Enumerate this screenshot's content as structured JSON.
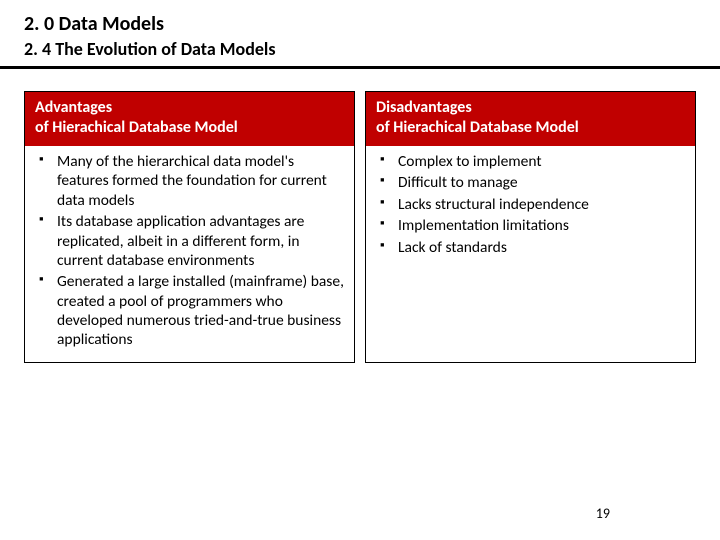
{
  "chapter": "2. 0 Data Models",
  "section": "2. 4 The Evolution of Data Models",
  "colors": {
    "header_bg": "#c00000",
    "header_text": "#ffffff",
    "body_bg": "#ffffff",
    "rule": "#000000",
    "border": "#000000"
  },
  "columns": {
    "left": {
      "header_line1": "Advantages",
      "header_line2": "of Hierachical Database Model",
      "items": [
        "Many of the hierarchical data model's features formed the foundation for current data models",
        "Its database application advantages are replicated, albeit in a different form, in current database environments",
        "Generated a large installed (mainframe) base, created a pool of programmers who developed numerous tried-and-true business applications"
      ]
    },
    "right": {
      "header_line1": "Disadvantages",
      "header_line2": "of Hierachical Database Model",
      "items": [
        "Complex to implement",
        "Difficult to manage",
        "Lacks structural independence",
        "Implementation limitations",
        "Lack of standards"
      ]
    }
  },
  "page_number": "19"
}
